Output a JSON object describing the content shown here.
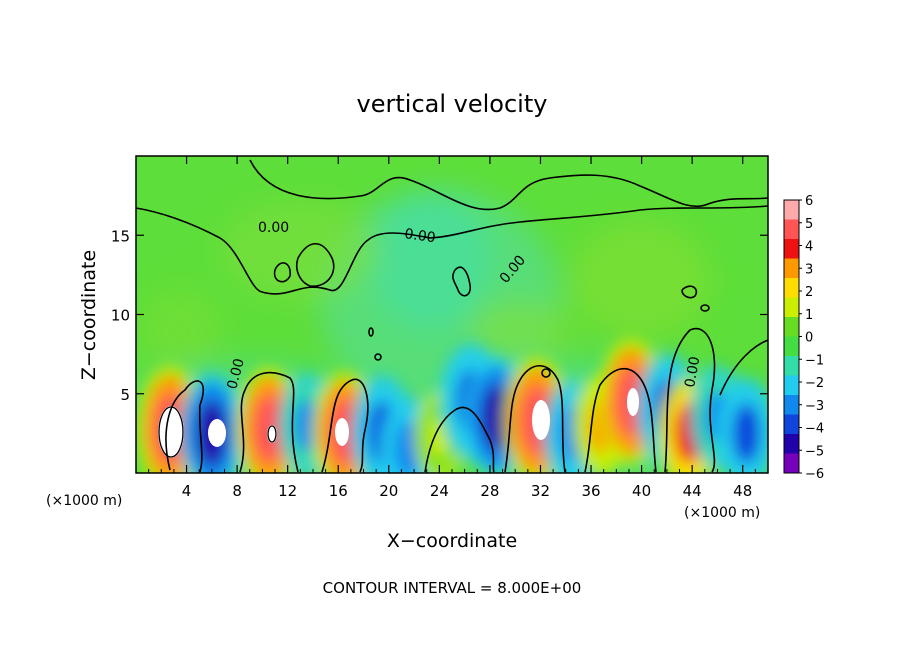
{
  "chart_data": {
    "type": "heatmap",
    "title": "vertical velocity",
    "xlabel": "X−coordinate",
    "ylabel": "Z−coordinate",
    "x_unit_label": "(×1000 m)",
    "y_unit_label": "(×1000 m)",
    "xlim": [
      0,
      50
    ],
    "ylim": [
      0,
      20
    ],
    "x_ticks": [
      4,
      8,
      12,
      16,
      20,
      24,
      28,
      32,
      36,
      40,
      44,
      48
    ],
    "y_ticks": [
      5,
      10,
      15
    ],
    "colorbar": {
      "labels": [
        "6",
        "5",
        "4",
        "3",
        "2",
        "1",
        "0",
        "−1",
        "−2",
        "−3",
        "−4",
        "−5",
        "−6"
      ],
      "colors": [
        "#ffaaaa",
        "#ff5555",
        "#ee1111",
        "#ff9900",
        "#ffdd00",
        "#ccee00",
        "#66dd22",
        "#44dd44",
        "#33ddaa",
        "#22ccee",
        "#1188ee",
        "#1144dd",
        "#2200aa",
        "#7700bb"
      ]
    },
    "contour_labels": [
      "0.00",
      "0.00",
      "0.00",
      "0.00",
      "0.00"
    ],
    "footer": "CONTOUR INTERVAL = 8.000E+00",
    "cells": [
      {
        "x": 2.7,
        "z": 2.8,
        "w": 5.5
      },
      {
        "x": 6.0,
        "z": 2.5,
        "w": -5.0
      },
      {
        "x": 10.5,
        "z": 2.8,
        "w": 5.2
      },
      {
        "x": 13.5,
        "z": 3.0,
        "w": -3.0
      },
      {
        "x": 16.5,
        "z": 2.6,
        "w": 5.0
      },
      {
        "x": 19.5,
        "z": 2.5,
        "w": -4.5
      },
      {
        "x": 21.5,
        "z": 1.5,
        "w": -3.5
      },
      {
        "x": 24.0,
        "z": 2.3,
        "w": 1.5
      },
      {
        "x": 26.5,
        "z": 4.5,
        "w": -4.5
      },
      {
        "x": 28.5,
        "z": 3.5,
        "w": -5.0
      },
      {
        "x": 31.7,
        "z": 3.3,
        "w": 5.5
      },
      {
        "x": 34.5,
        "z": 2.5,
        "w": -3.5
      },
      {
        "x": 36.8,
        "z": 3.0,
        "w": 3.0
      },
      {
        "x": 39.2,
        "z": 4.5,
        "w": 5.5
      },
      {
        "x": 42.0,
        "z": 4.0,
        "w": -4.0
      },
      {
        "x": 43.7,
        "z": 2.5,
        "w": 4.0
      },
      {
        "x": 46.0,
        "z": 3.5,
        "w": -3.0
      },
      {
        "x": 48.3,
        "z": 2.5,
        "w": -4.0
      }
    ]
  }
}
